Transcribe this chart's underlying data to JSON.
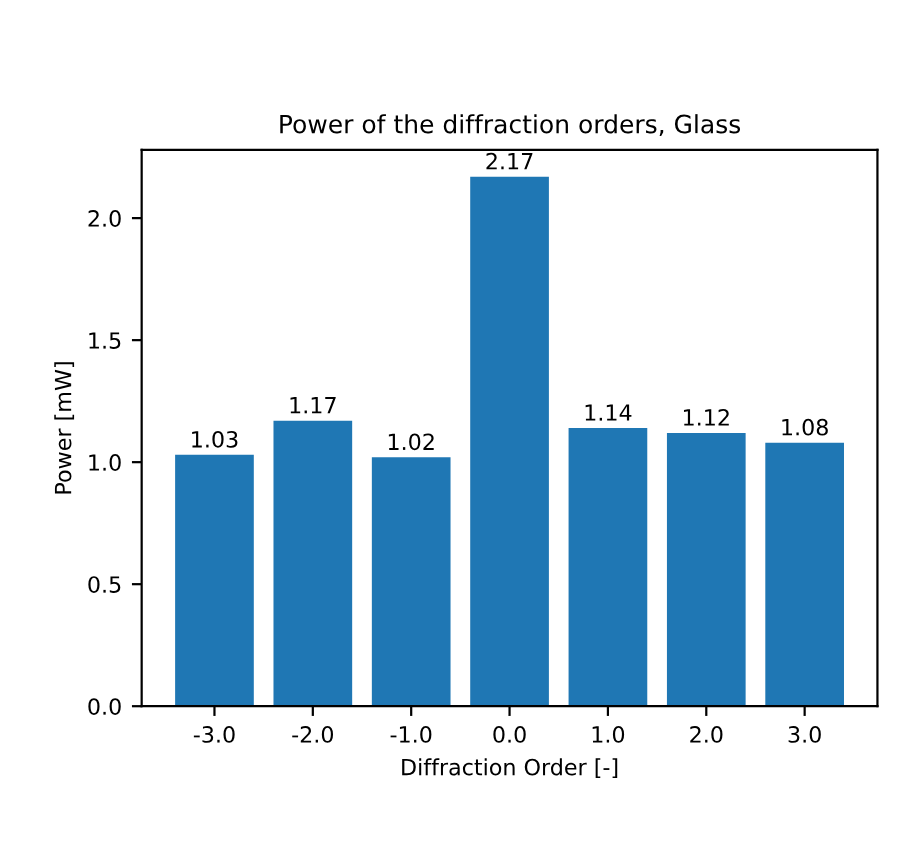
{
  "chart_data": {
    "type": "bar",
    "title": "Power of the diffraction orders, Glass",
    "xlabel": "Diffraction Order [-]",
    "ylabel": "Power [mW]",
    "categories": [
      "-3.0",
      "-2.0",
      "-1.0",
      "0.0",
      "1.0",
      "2.0",
      "3.0"
    ],
    "values": [
      1.03,
      1.17,
      1.02,
      2.17,
      1.14,
      1.12,
      1.08
    ],
    "color": "#1f77b4",
    "ylim": [
      0,
      2.28
    ],
    "yticks": [
      {
        "value": 0,
        "label": "0.0"
      },
      {
        "value": 0.5,
        "label": "0.5"
      },
      {
        "value": 1,
        "label": "1.0"
      },
      {
        "value": 1.5,
        "label": "1.5"
      },
      {
        "value": 2,
        "label": "2.0"
      }
    ],
    "data_labels": true
  }
}
